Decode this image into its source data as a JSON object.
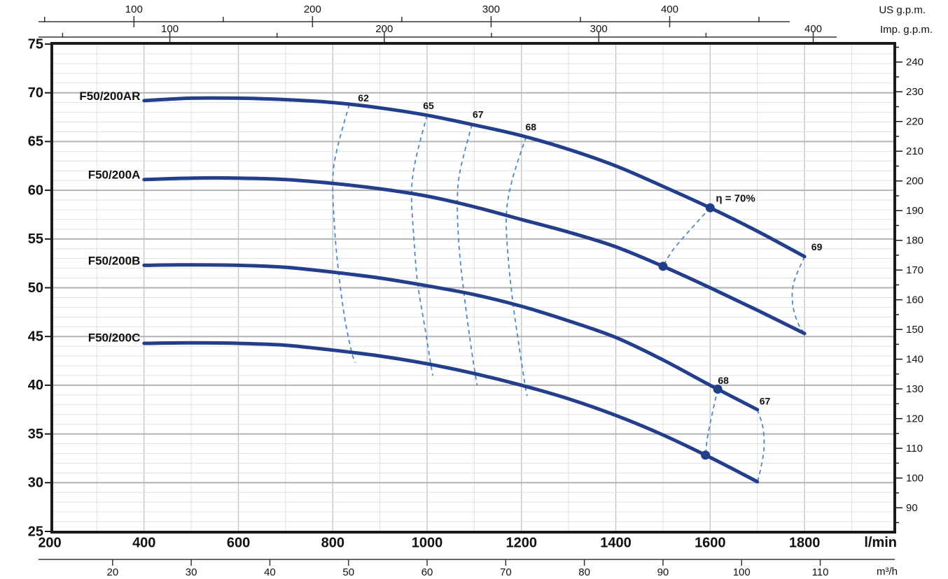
{
  "labels": {
    "us_gpm": "US g.p.m.",
    "imp_gpm": "Imp. g.p.m.",
    "lmin": "l/min",
    "m3h": "m³/h"
  },
  "colors": {
    "curve": "#233e8b",
    "efficiency_line": "#4f87c5",
    "grid_minor": "#e0e0e0",
    "grid_major_h": "#b3b3b3",
    "grid_major_v": "#c2c2c2",
    "border": "#1a1a1a",
    "text": "#111111"
  },
  "chart_data": {
    "type": "line",
    "title": "F50/200 pump performance curves (head vs flow) with iso-efficiency lines",
    "x_axis_lmin": {
      "range": [
        200,
        1990
      ],
      "labeled_ticks": [
        200,
        400,
        600,
        800,
        1000,
        1200,
        1400,
        1600,
        1800
      ],
      "grid_step": 100,
      "unit": "l/min"
    },
    "y_axis_left_m": {
      "range": [
        25,
        75
      ],
      "labeled_ticks": [
        25,
        30,
        35,
        40,
        45,
        50,
        55,
        60,
        65,
        70,
        75
      ],
      "grid_minor_step": 1,
      "grid_major_step": 5
    },
    "y_axis_right_ft": {
      "labeled_ticks": [
        90,
        100,
        110,
        120,
        130,
        140,
        150,
        160,
        170,
        180,
        190,
        200,
        210,
        220,
        230,
        240
      ],
      "minor_step": 5,
      "m_per_ft": 0.3048
    },
    "top_axis_us_gpm": {
      "labeled_ticks": [
        100,
        200,
        300,
        400
      ],
      "minor_ticks": [
        50,
        150,
        250,
        350,
        450
      ],
      "lmin_per_unit": 3.78541,
      "unit": "US g.p.m."
    },
    "top_axis_imp_gpm": {
      "labeled_ticks": [
        100,
        200,
        300,
        400
      ],
      "minor_ticks": [
        50,
        150,
        250,
        350
      ],
      "lmin_per_unit": 4.54609,
      "unit": "Imp. g.p.m."
    },
    "bottom_axis_m3h": {
      "labeled_ticks": [
        20,
        30,
        40,
        50,
        60,
        70,
        80,
        90,
        100,
        110
      ],
      "lmin_per_unit": 16.6667,
      "unit": "m³/h"
    },
    "series": [
      {
        "name": "F50/200AR",
        "label_at": [
          392,
          69.6
        ],
        "points": [
          [
            400,
            69.2
          ],
          [
            500,
            69.45
          ],
          [
            600,
            69.45
          ],
          [
            700,
            69.3
          ],
          [
            800,
            69.0
          ],
          [
            900,
            68.45
          ],
          [
            1000,
            67.7
          ],
          [
            1100,
            66.7
          ],
          [
            1200,
            65.6
          ],
          [
            1300,
            64.2
          ],
          [
            1400,
            62.5
          ],
          [
            1500,
            60.4
          ],
          [
            1600,
            58.2
          ],
          [
            1700,
            55.8
          ],
          [
            1800,
            53.2
          ]
        ]
      },
      {
        "name": "F50/200A",
        "label_at": [
          392,
          61.5
        ],
        "points": [
          [
            400,
            61.1
          ],
          [
            500,
            61.25
          ],
          [
            600,
            61.25
          ],
          [
            700,
            61.1
          ],
          [
            800,
            60.7
          ],
          [
            900,
            60.15
          ],
          [
            1000,
            59.4
          ],
          [
            1100,
            58.3
          ],
          [
            1200,
            57.0
          ],
          [
            1300,
            55.7
          ],
          [
            1400,
            54.2
          ],
          [
            1500,
            52.2
          ],
          [
            1600,
            50.0
          ],
          [
            1700,
            47.7
          ],
          [
            1800,
            45.3
          ]
        ]
      },
      {
        "name": "F50/200B",
        "label_at": [
          392,
          52.7
        ],
        "points": [
          [
            400,
            52.3
          ],
          [
            500,
            52.35
          ],
          [
            600,
            52.3
          ],
          [
            700,
            52.1
          ],
          [
            800,
            51.6
          ],
          [
            900,
            51.0
          ],
          [
            1000,
            50.2
          ],
          [
            1100,
            49.3
          ],
          [
            1200,
            48.1
          ],
          [
            1300,
            46.6
          ],
          [
            1400,
            44.9
          ],
          [
            1500,
            42.6
          ],
          [
            1600,
            40.0
          ],
          [
            1700,
            37.5
          ]
        ]
      },
      {
        "name": "F50/200C",
        "label_at": [
          392,
          44.8
        ],
        "points": [
          [
            400,
            44.3
          ],
          [
            500,
            44.35
          ],
          [
            600,
            44.3
          ],
          [
            700,
            44.1
          ],
          [
            800,
            43.6
          ],
          [
            900,
            43.0
          ],
          [
            1000,
            42.2
          ],
          [
            1100,
            41.2
          ],
          [
            1200,
            40.0
          ],
          [
            1300,
            38.6
          ],
          [
            1400,
            36.9
          ],
          [
            1500,
            34.9
          ],
          [
            1600,
            32.6
          ],
          [
            1700,
            30.1
          ]
        ]
      }
    ],
    "markers": [
      {
        "series": 0,
        "q": 1600
      },
      {
        "series": 1,
        "q": 1500
      },
      {
        "series": 2,
        "q": 1616
      },
      {
        "series": 3,
        "q": 1590
      }
    ],
    "efficiency_lines": [
      {
        "label": "62",
        "label_at": [
          865,
          69.4
        ],
        "anchor": "middle",
        "points": [
          [
            835,
            68.8
          ],
          [
            808,
            64.0
          ],
          [
            800,
            60.9
          ],
          [
            804,
            56.0
          ],
          [
            812,
            51.7
          ],
          [
            825,
            47.0
          ],
          [
            840,
            43.4
          ],
          [
            848,
            42.3
          ]
        ]
      },
      {
        "label": "65",
        "label_at": [
          1003,
          68.6
        ],
        "anchor": "middle",
        "points": [
          [
            1000,
            67.7
          ],
          [
            975,
            63.0
          ],
          [
            967,
            59.6
          ],
          [
            972,
            55.0
          ],
          [
            980,
            50.4
          ],
          [
            995,
            46.0
          ],
          [
            1008,
            42.1
          ],
          [
            1012,
            41.0
          ]
        ]
      },
      {
        "label": "67",
        "label_at": [
          1108,
          67.7
        ],
        "anchor": "middle",
        "points": [
          [
            1095,
            66.75
          ],
          [
            1070,
            62.0
          ],
          [
            1064,
            58.7
          ],
          [
            1068,
            54.0
          ],
          [
            1078,
            49.5
          ],
          [
            1090,
            45.0
          ],
          [
            1102,
            41.1
          ],
          [
            1106,
            40.0
          ]
        ]
      },
      {
        "label": "68",
        "label_at": [
          1220,
          66.4
        ],
        "anchor": "middle",
        "points": [
          [
            1210,
            65.5
          ],
          [
            1180,
            61.0
          ],
          [
            1168,
            57.4
          ],
          [
            1172,
            53.0
          ],
          [
            1182,
            48.4
          ],
          [
            1195,
            44.0
          ],
          [
            1208,
            39.9
          ],
          [
            1212,
            38.9
          ]
        ]
      },
      {
        "label": "η = 70%",
        "label_at": [
          1612,
          59.1
        ],
        "anchor": "start",
        "points": [
          [
            1600,
            58.2
          ],
          [
            1555,
            55.8
          ],
          [
            1520,
            53.8
          ],
          [
            1500,
            52.2
          ]
        ]
      },
      {
        "label": "69",
        "label_at": [
          1826,
          54.1
        ],
        "anchor": "middle",
        "points": [
          [
            1800,
            53.2
          ],
          [
            1777,
            50.5
          ],
          [
            1775,
            48.3
          ],
          [
            1786,
            46.4
          ],
          [
            1800,
            45.3
          ]
        ]
      },
      {
        "label": "68",
        "label_at": [
          1628,
          40.4
        ],
        "anchor": "middle",
        "points": [
          [
            1616,
            39.6
          ],
          [
            1604,
            37.0
          ],
          [
            1594,
            34.6
          ],
          [
            1590,
            32.8
          ]
        ]
      },
      {
        "label": "67",
        "label_at": [
          1716,
          38.3
        ],
        "anchor": "middle",
        "points": [
          [
            1700,
            37.5
          ],
          [
            1712,
            35.6
          ],
          [
            1714,
            33.4
          ],
          [
            1706,
            31.2
          ],
          [
            1700,
            30.1
          ]
        ]
      }
    ]
  }
}
